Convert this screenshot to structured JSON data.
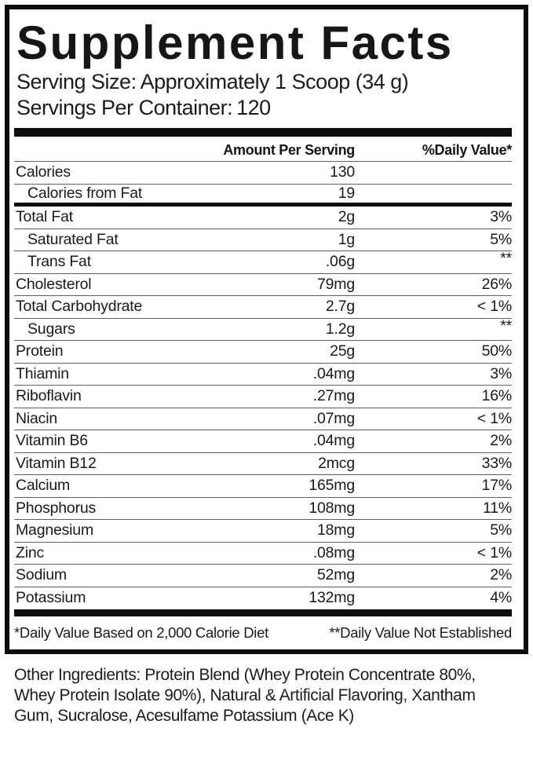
{
  "title": "Supplement Facts",
  "serving": {
    "size_label": "Serving Size:",
    "size_value": "Approximately 1 Scoop (34 g)",
    "per_container_label": "Servings Per Container:",
    "per_container_value": "120"
  },
  "table": {
    "amount_header": "Amount Per Serving",
    "dv_header": "%Daily Value*",
    "rows": [
      {
        "name": "Calories",
        "amount": "130",
        "dv": "",
        "indent": false,
        "sep": "thin"
      },
      {
        "name": "Calories from Fat",
        "amount": "19",
        "dv": "",
        "indent": true,
        "sep": "thick"
      },
      {
        "name": "Total Fat",
        "amount": "2g",
        "dv": "3%",
        "indent": false,
        "sep": "thin"
      },
      {
        "name": "Saturated Fat",
        "amount": "1g",
        "dv": "5%",
        "indent": true,
        "sep": "thin"
      },
      {
        "name": "Trans Fat",
        "amount": ".06g",
        "dv": "**",
        "indent": true,
        "sep": "thin"
      },
      {
        "name": "Cholesterol",
        "amount": "79mg",
        "dv": "26%",
        "indent": false,
        "sep": "thin"
      },
      {
        "name": "Total Carbohydrate",
        "amount": "2.7g",
        "dv": "< 1%",
        "indent": false,
        "sep": "thin"
      },
      {
        "name": "Sugars",
        "amount": "1.2g",
        "dv": "**",
        "indent": true,
        "sep": "thin"
      },
      {
        "name": "Protein",
        "amount": "25g",
        "dv": "50%",
        "indent": false,
        "sep": "thin"
      },
      {
        "name": "Thiamin",
        "amount": ".04mg",
        "dv": "3%",
        "indent": false,
        "sep": "thin"
      },
      {
        "name": "Riboflavin",
        "amount": ".27mg",
        "dv": "16%",
        "indent": false,
        "sep": "thin"
      },
      {
        "name": "Niacin",
        "amount": ".07mg",
        "dv": "< 1%",
        "indent": false,
        "sep": "thin"
      },
      {
        "name": "Vitamin B6",
        "amount": ".04mg",
        "dv": "2%",
        "indent": false,
        "sep": "thin"
      },
      {
        "name": "Vitamin B12",
        "amount": "2mcg",
        "dv": "33%",
        "indent": false,
        "sep": "thin"
      },
      {
        "name": "Calcium",
        "amount": "165mg",
        "dv": "17%",
        "indent": false,
        "sep": "thin"
      },
      {
        "name": "Phosphorus",
        "amount": "108mg",
        "dv": "11%",
        "indent": false,
        "sep": "thin"
      },
      {
        "name": "Magnesium",
        "amount": "18mg",
        "dv": "5%",
        "indent": false,
        "sep": "thin"
      },
      {
        "name": "Zinc",
        "amount": ".08mg",
        "dv": "< 1%",
        "indent": false,
        "sep": "thin"
      },
      {
        "name": "Sodium",
        "amount": "52mg",
        "dv": "2%",
        "indent": false,
        "sep": "thin"
      },
      {
        "name": "Potassium",
        "amount": "132mg",
        "dv": "4%",
        "indent": false,
        "sep": "none"
      }
    ]
  },
  "footnotes": {
    "left": "*Daily Value Based on 2,000 Calorie Diet",
    "right": "**Daily Value Not Established"
  },
  "other_ingredients": "Other Ingredients: Protein Blend (Whey Protein Concentrate 80%, Whey Protein Isolate 90%), Natural & Artificial Flavoring, Xantham Gum, Sucralose, Acesulfame Potassium (Ace K)",
  "colors": {
    "ink": "#141414",
    "hairline": "#606060",
    "background": "#ffffff"
  }
}
